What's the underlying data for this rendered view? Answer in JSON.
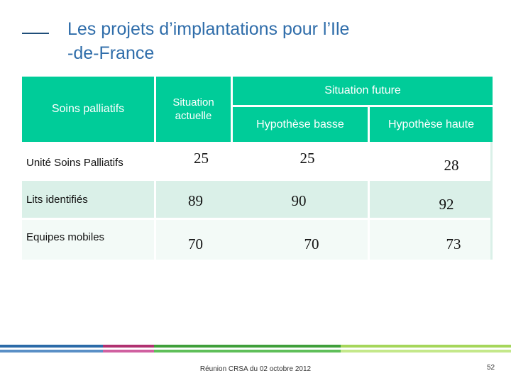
{
  "slide": {
    "title_line1": "Les projets d’implantations pour l’Ile",
    "title_line2": "-de-France",
    "footer_text": "Réunion CRSA du 02 octobre 2012",
    "page_number": "52"
  },
  "table": {
    "headers": {
      "row_label": "Soins palliatifs",
      "current": "Situation actuelle",
      "future": "Situation future",
      "low": "Hypothèse basse",
      "high": "Hypothèse haute"
    },
    "rows": [
      {
        "label": "Unité Soins Palliatifs",
        "current": "25",
        "low": "25",
        "high": "28"
      },
      {
        "label": "Lits identifiés",
        "current": "89",
        "low": "90",
        "high": "92"
      },
      {
        "label": "Equipes mobiles",
        "current": "70",
        "low": "70",
        "high": "73"
      }
    ]
  },
  "colors": {
    "header_bg": "#00cc99",
    "band_bg": "#daf0e8",
    "title": "#2f6daa"
  }
}
